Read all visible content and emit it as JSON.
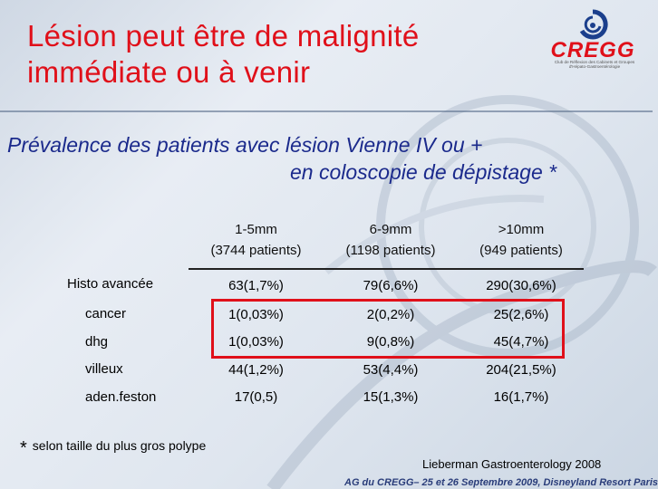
{
  "title": {
    "line1": "Lésion peut être  de malignité",
    "line2": "immédiate  ou à venir"
  },
  "logo": {
    "name": "CREGG",
    "subtitle": "Club de Réflexion des Cabinets et Groupes d'Hépato-Gastroentérologie"
  },
  "subtitle": {
    "line1": "Prévalence des patients avec lésion Vienne IV ou +",
    "line2": "en coloscopie de dépistage *"
  },
  "table": {
    "columns": [
      {
        "size": "1-5mm",
        "patients": "(3744 patients)"
      },
      {
        "size": "6-9mm",
        "patients": "(1198 patients)"
      },
      {
        "size": ">10mm",
        "patients": "(949 patients)"
      }
    ],
    "rows": [
      {
        "label": "Histo avancée",
        "values": [
          "63(1,7%)",
          "79(6,6%)",
          "290(30,6%)"
        ]
      },
      {
        "label": "cancer",
        "values": [
          "1(0,03%)",
          "2(0,2%)",
          "25(2,6%)"
        ]
      },
      {
        "label": "dhg",
        "values": [
          "1(0,03%)",
          "9(0,8%)",
          "45(4,7%)"
        ]
      },
      {
        "label": "villeux",
        "values": [
          "44(1,2%)",
          "53(4,4%)",
          "204(21,5%)"
        ]
      },
      {
        "label": "aden.feston",
        "values": [
          "17(0,5)",
          "15(1,3%)",
          "16(1,7%)"
        ]
      }
    ]
  },
  "footnote": {
    "star": "*",
    "text": "selon taille du plus gros polype"
  },
  "reference": "Lieberman  Gastroenterology  2008",
  "conference": "AG du CREGG– 25 et 26 Septembre 2009, Disneyland Resort Paris",
  "colors": {
    "title": "#e0101a",
    "subtitle": "#1b2a8c",
    "highlight": "#e0101a"
  }
}
